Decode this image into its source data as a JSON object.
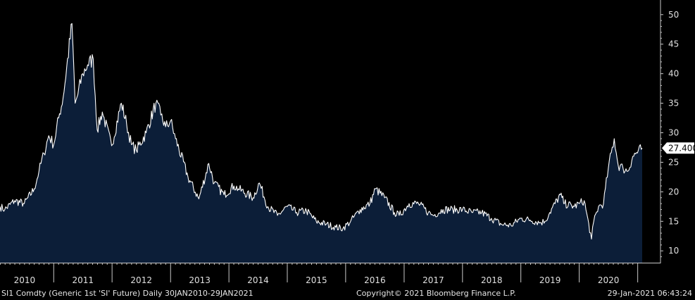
{
  "chart_data": {
    "type": "area",
    "title": "",
    "xlabel": "",
    "ylabel": "",
    "ylim": [
      8,
      52
    ],
    "y_ticks": [
      "50",
      "45",
      "40",
      "35",
      "30",
      "25",
      "20",
      "15",
      "10"
    ],
    "x_tick_labels": [
      "2010",
      "2011",
      "2012",
      "2013",
      "2014",
      "2015",
      "2016",
      "2017",
      "2018",
      "2019",
      "2020"
    ],
    "x_range": [
      "2010-01-30",
      "2021-01-29"
    ],
    "grid": false,
    "legend": "none",
    "last_value_label": "27.400",
    "series": [
      {
        "name": "",
        "x": [
          "2010-01-30",
          "2010-03",
          "2010-05",
          "2010-07",
          "2010-09",
          "2010-10",
          "2010-11",
          "2010-12",
          "2011-01",
          "2011-02",
          "2011-03",
          "2011-04-25",
          "2011-05-15",
          "2011-06",
          "2011-07",
          "2011-08",
          "2011-09-05",
          "2011-09-30",
          "2011-11",
          "2011-12-29",
          "2012-02-28",
          "2012-04",
          "2012-05",
          "2012-06",
          "2012-08",
          "2012-10-01",
          "2012-11",
          "2012-12",
          "2013-01",
          "2013-02",
          "2013-04-20",
          "2013-06-27",
          "2013-08-28",
          "2013-10",
          "2013-12",
          "2014-02",
          "2014-03",
          "2014-06",
          "2014-07-10",
          "2014-09",
          "2014-11",
          "2015-01",
          "2015-03",
          "2015-05",
          "2015-07",
          "2015-09",
          "2015-11",
          "2015-12-15",
          "2016-02",
          "2016-04",
          "2016-06",
          "2016-07-05",
          "2016-09",
          "2016-11",
          "2016-12",
          "2017-02",
          "2017-04",
          "2017-06",
          "2017-07",
          "2017-09",
          "2017-11",
          "2018-01",
          "2018-03",
          "2018-05",
          "2018-07",
          "2018-09",
          "2018-11",
          "2019-01",
          "2019-03",
          "2019-05",
          "2019-06",
          "2019-07",
          "2019-09-05",
          "2019-10",
          "2019-12",
          "2020-01",
          "2020-02",
          "2020-03-18",
          "2020-04",
          "2020-05",
          "2020-06",
          "2020-07",
          "2020-08-07",
          "2020-09",
          "2020-10",
          "2020-11",
          "2020-12",
          "2021-01-29"
        ],
        "y": [
          17.5,
          17.0,
          18.5,
          18.0,
          20.5,
          23.5,
          26.5,
          29.5,
          28.0,
          32.5,
          36.0,
          48.5,
          35.0,
          36.5,
          40.0,
          41.5,
          42.5,
          30.5,
          33.5,
          27.8,
          35.0,
          31.5,
          28.0,
          27.0,
          30.0,
          35.0,
          33.0,
          31.0,
          32.0,
          29.0,
          22.5,
          18.8,
          24.8,
          21.5,
          19.5,
          21.0,
          20.5,
          19.0,
          21.5,
          17.5,
          16.0,
          17.5,
          16.5,
          16.8,
          15.0,
          14.5,
          14.0,
          13.8,
          15.0,
          17.0,
          18.0,
          20.5,
          19.0,
          16.5,
          16.0,
          18.0,
          18.0,
          16.5,
          16.0,
          17.0,
          17.0,
          17.0,
          16.5,
          16.5,
          15.5,
          14.5,
          14.3,
          15.5,
          15.2,
          14.8,
          15.0,
          16.5,
          19.5,
          18.0,
          17.5,
          18.0,
          18.5,
          12.0,
          15.0,
          17.5,
          18.0,
          24.0,
          29.0,
          24.5,
          24.0,
          23.5,
          26.0,
          27.4
        ]
      }
    ]
  },
  "footer": {
    "left": "SI1 Comdty (Generic 1st 'SI' Future)  Daily 30JAN2010-29JAN2021",
    "center": "Copyright© 2021 Bloomberg Finance L.P.",
    "right": "29-Jan-2021 06:43:24"
  },
  "colors": {
    "background": "#000000",
    "area_fill": "#0c1e38",
    "line": "#ffffff",
    "axis": "#c8c8c8"
  }
}
